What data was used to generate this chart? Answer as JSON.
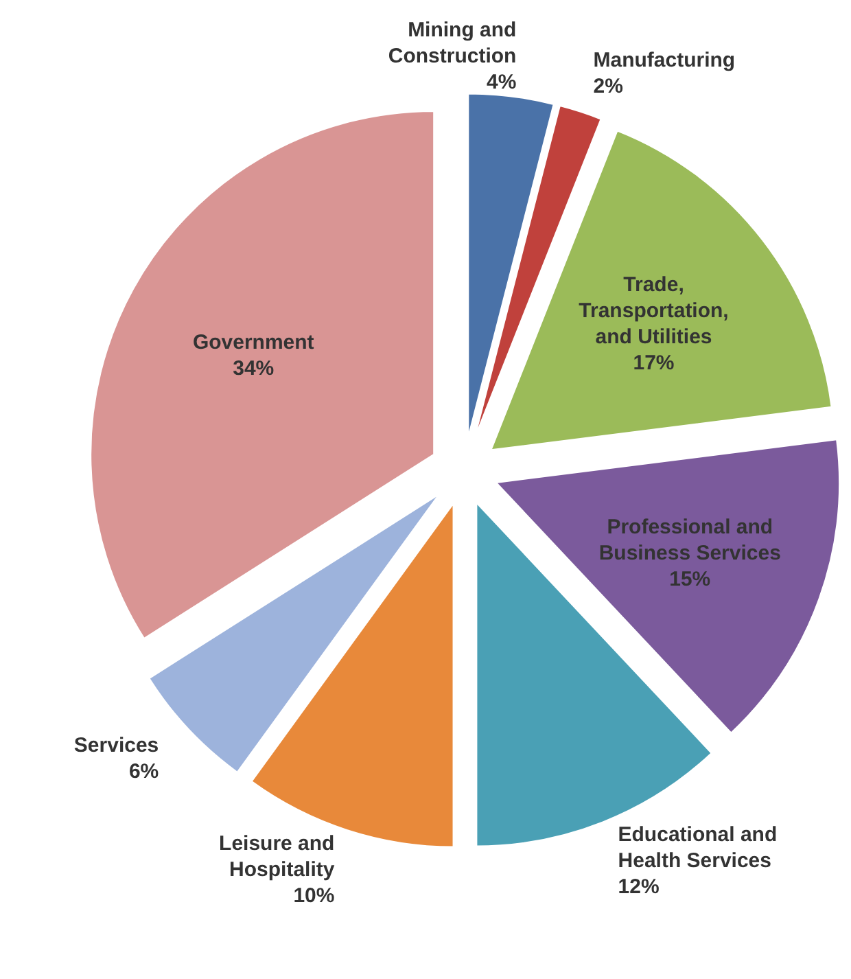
{
  "chart_data": {
    "type": "pie",
    "categories": [
      "Mining and Construction",
      "Manufacturing",
      "Trade, Transportation, and Utilities",
      "Professional and Business Services",
      "Educational and Health Services",
      "Leisure and Hospitality",
      "Services",
      "Government"
    ],
    "values": [
      4,
      2,
      17,
      15,
      12,
      10,
      6,
      34
    ],
    "colors": [
      "#4a72a8",
      "#c0413c",
      "#9bbb59",
      "#7b5a9c",
      "#4aa0b5",
      "#e8893a",
      "#9db3dc",
      "#d99594"
    ],
    "value_labels": [
      "4%",
      "2%",
      "17%",
      "15%",
      "12%",
      "10%",
      "6%",
      "34%"
    ]
  }
}
